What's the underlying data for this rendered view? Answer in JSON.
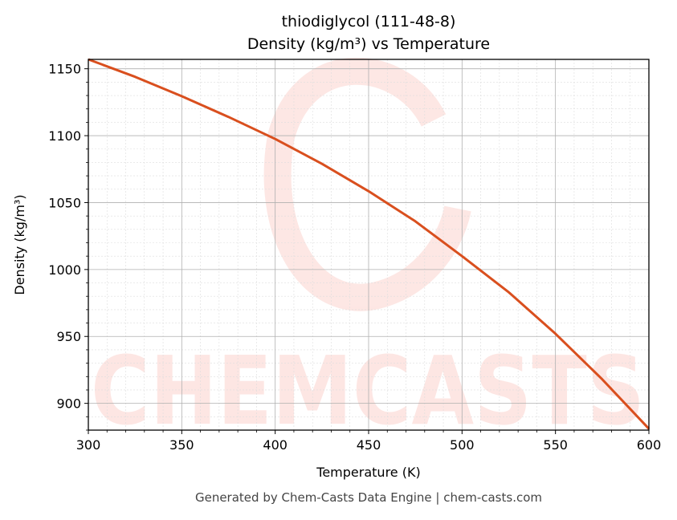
{
  "chart_data": {
    "type": "line",
    "title": "thiodiglycol (111-48-8)",
    "subtitle": "Density (kg/m³) vs Temperature",
    "xlabel": "Temperature (K)",
    "ylabel": "Density (kg/m³)",
    "xlim": [
      300,
      600
    ],
    "ylim": [
      880,
      1157
    ],
    "xticks": [
      300,
      350,
      400,
      450,
      500,
      550,
      600
    ],
    "yticks": [
      900,
      950,
      1000,
      1050,
      1100,
      1150
    ],
    "grid": true,
    "series": [
      {
        "name": "Density",
        "color": "#d94f1e",
        "x": [
          300,
          325,
          350,
          375,
          400,
          425,
          450,
          475,
          500,
          525,
          550,
          575,
          600
        ],
        "y": [
          1157,
          1144,
          1129.5,
          1114,
          1097.5,
          1079,
          1058.5,
          1036,
          1010,
          983,
          952,
          918,
          881
        ]
      }
    ],
    "footer": "Generated by Chem-Casts Data Engine | chem-casts.com",
    "watermark": "CHEMCASTS"
  }
}
